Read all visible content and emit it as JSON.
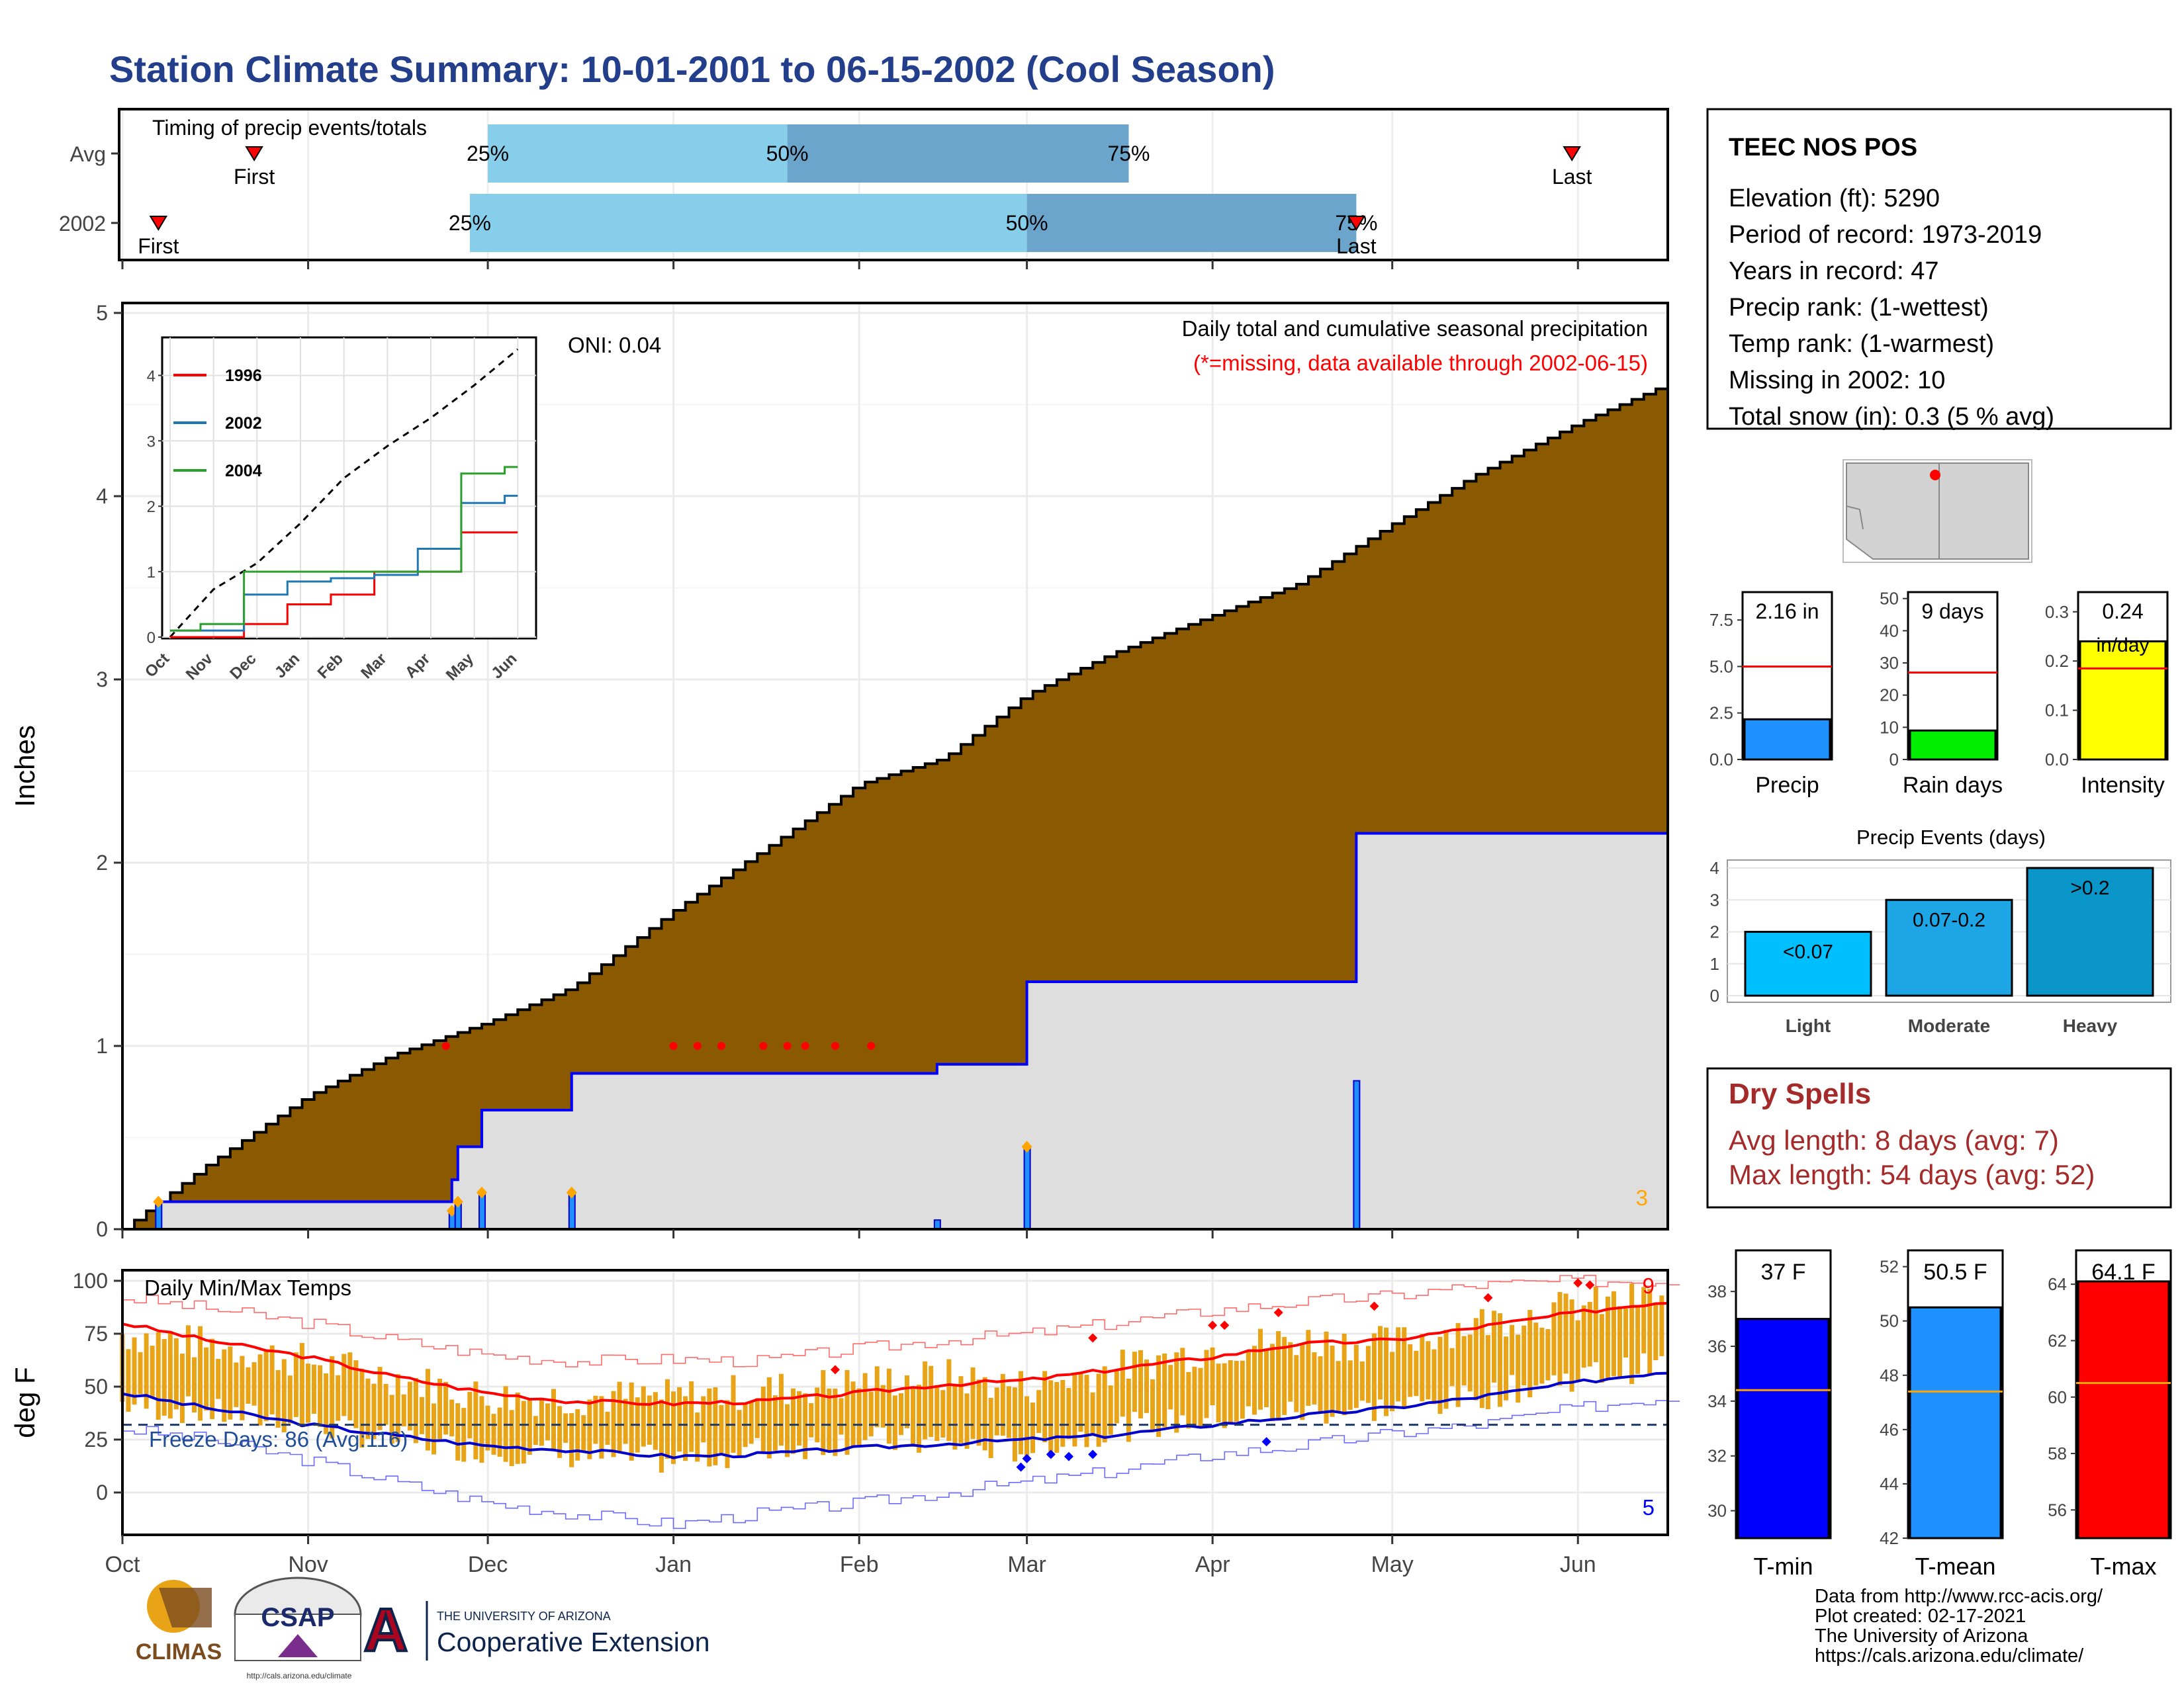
{
  "title": "Station Climate Summary: 10-01-2001 to 06-15-2002 (Cool Season)",
  "colors": {
    "title": "#233f8c",
    "cum_fill": "#8b5a00",
    "avg_fill": "#dedede",
    "bar_light": "#87ceeb",
    "bar_dark": "#6ba5cc",
    "precip_bar": "#1e90ff",
    "raindays_bar": "#00ee00",
    "intensity_bar": "#ffff00",
    "tmin": "#0000ff",
    "tmean": "#1e90ff",
    "tmax": "#ff0000",
    "dry": "#a52a2a",
    "daily_range": "#e8a317"
  },
  "timing": {
    "title": "Timing of precip events/totals",
    "rows": [
      {
        "label": "Avg",
        "first": "Oct 23",
        "p25": "Dec 1",
        "p50": "Jan 20",
        "p75": "Mar 18",
        "last": "May 31",
        "first_label": "First",
        "last_label": "Last",
        "p25_label": "25%",
        "p50_label": "50%",
        "p75_label": "75%"
      },
      {
        "label": "2002",
        "first": "Oct 7",
        "p25": "Nov 28",
        "p50": "Mar 1",
        "p75": "Apr 25",
        "last": "Apr 25",
        "first_label": "First",
        "last_label": "Last",
        "p25_label": "25%",
        "p50_label": "50%",
        "p75_label": "75%"
      }
    ]
  },
  "station": {
    "name": "TEEC NOS POS",
    "lines": [
      "Elevation (ft): 5290",
      "Period of record: 1973-2019",
      "Years in record: 47",
      "Precip rank:  (1-wettest)",
      "Temp rank:  (1-warmest)",
      "Missing in 2002: 10",
      "Total snow (in): 0.3 (5 % avg)"
    ]
  },
  "precip_chart": {
    "ylabel": "Inches",
    "title": "Daily total and cumulative seasonal precipitation",
    "subtitle": "(*=missing, data available through 2002-06-15)",
    "oni": "ONI: 0.04",
    "count_label": "3",
    "months": [
      "Oct",
      "Nov",
      "Dec",
      "Jan",
      "Feb",
      "Mar",
      "Apr",
      "May",
      "Jun"
    ],
    "y_ticks": [
      "0",
      "1",
      "2",
      "3",
      "4",
      "5"
    ]
  },
  "inset": {
    "months": [
      "Oct",
      "Nov",
      "Dec",
      "Jan",
      "Feb",
      "Mar",
      "Apr",
      "May",
      "Jun"
    ],
    "y_ticks": [
      "0",
      "1",
      "2",
      "3",
      "4"
    ],
    "legend": [
      {
        "name": "1996",
        "color": "#ff0000"
      },
      {
        "name": "2002",
        "color": "#1f77b4"
      },
      {
        "name": "2004",
        "color": "#2ca02c"
      }
    ]
  },
  "temp_chart": {
    "ylabel": "deg F",
    "title": "Daily Min/Max Temps",
    "freeze": "Freeze Days: 86 (Avg:116)",
    "count_max": "9",
    "count_min": "5",
    "y_ticks": [
      "0",
      "25",
      "50",
      "75",
      "100"
    ],
    "months": [
      "Oct",
      "Nov",
      "Dec",
      "Jan",
      "Feb",
      "Mar",
      "Apr",
      "May",
      "Jun"
    ]
  },
  "mini_bars": [
    {
      "name": "Precip",
      "value": 2.16,
      "avg": 5.0,
      "label": "2.16 in",
      "label2": "",
      "ticks": [
        "0.0",
        "2.5",
        "5.0",
        "7.5"
      ],
      "ymax": 9.0
    },
    {
      "name": "Rain days",
      "value": 9,
      "avg": 27,
      "label": "9 days",
      "label2": "",
      "ticks": [
        "0",
        "10",
        "20",
        "30",
        "40",
        "50"
      ],
      "ymax": 52
    },
    {
      "name": "Intensity",
      "value": 0.24,
      "avg": 0.185,
      "label": "0.24",
      "label2": "in/day",
      "ticks": [
        "0.0",
        "0.1",
        "0.2",
        "0.3"
      ],
      "ymax": 0.34
    }
  ],
  "events": {
    "title": "Precip Events (days)",
    "ticks": [
      "0",
      "1",
      "2",
      "3",
      "4"
    ],
    "bars": [
      {
        "name": "Light",
        "value": 2,
        "label": "<0.07",
        "color": "#00bfff"
      },
      {
        "name": "Moderate",
        "value": 3,
        "label": "0.07-0.2",
        "color": "#1ea5e6"
      },
      {
        "name": "Heavy",
        "value": 4,
        "label": ">0.2",
        "color": "#0a96c8"
      }
    ]
  },
  "dry_spells": {
    "title": "Dry Spells",
    "avg": "Avg length: 8 days (avg: 7)",
    "max": "Max length: 54 days (avg: 52)"
  },
  "temps_bars": [
    {
      "name": "T-min",
      "value": 37.0,
      "avg": 34.4,
      "label": "37 F",
      "ticks": [
        "30",
        "32",
        "34",
        "36",
        "38"
      ],
      "ymin": 29,
      "ymax": 39.5,
      "color": "#0000ff"
    },
    {
      "name": "T-mean",
      "value": 50.5,
      "avg": 47.4,
      "label": "50.5 F",
      "ticks": [
        "42",
        "44",
        "46",
        "48",
        "50",
        "52"
      ],
      "ymin": 42,
      "ymax": 52.6,
      "color": "#1e90ff"
    },
    {
      "name": "T-max",
      "value": 64.1,
      "avg": 60.5,
      "label": "64.1 F",
      "ticks": [
        "56",
        "58",
        "60",
        "62",
        "64"
      ],
      "ymin": 55,
      "ymax": 65.2,
      "color": "#ff0000"
    }
  ],
  "logos": {
    "climas": "CLIMAS",
    "csap": "CSAP",
    "csap_url": "http://cals.arizona.edu/climate",
    "ua_small": "THE UNIVERSITY OF ARIZONA",
    "ua_big": "Cooperative Extension",
    "ua_letter": "A"
  },
  "footer": [
    "Data from http://www.rcc-acis.org/",
    "Plot created: 02-17-2021",
    "The University of Arizona",
    "https://cals.arizona.edu/climate/"
  ],
  "chart_data": [
    {
      "type": "area",
      "title": "Daily total and cumulative seasonal precipitation",
      "ylabel": "Inches",
      "ylim": [
        0,
        5
      ],
      "x": [
        "Oct 1",
        "Oct 15",
        "Nov 1",
        "Nov 15",
        "Dec 1",
        "Dec 15",
        "Jan 1",
        "Jan 15",
        "Feb 1",
        "Feb 15",
        "Mar 1",
        "Mar 15",
        "Apr 1",
        "Apr 15",
        "May 1",
        "May 15",
        "Jun 1",
        "Jun 15"
      ],
      "series": [
        {
          "name": "cumulative average",
          "values": [
            0.0,
            0.35,
            0.73,
            0.95,
            1.13,
            1.32,
            1.74,
            2.05,
            2.43,
            2.57,
            2.92,
            3.14,
            3.35,
            3.52,
            3.85,
            4.12,
            4.4,
            4.6
          ]
        },
        {
          "name": "2002",
          "values": [
            0.15,
            0.15,
            0.16,
            0.2,
            0.65,
            0.85,
            0.85,
            0.85,
            0.85,
            0.9,
            1.35,
            1.35,
            1.35,
            1.35,
            2.16,
            2.16,
            2.16,
            2.16
          ]
        }
      ],
      "daily_events": [
        {
          "date": "Oct 7",
          "value": 0.15
        },
        {
          "date": "Nov 25",
          "value": 0.1
        },
        {
          "date": "Nov 26",
          "value": 0.15
        },
        {
          "date": "Nov 30",
          "value": 0.2
        },
        {
          "date": "Dec 15",
          "value": 0.2
        },
        {
          "date": "Feb 14",
          "value": 0.05
        },
        {
          "date": "Mar 1",
          "value": 0.45
        },
        {
          "date": "Apr 25",
          "value": 0.81
        }
      ],
      "oni": 0.04
    },
    {
      "type": "line",
      "title": "",
      "ylim": [
        0,
        4.5
      ],
      "x": [
        "Oct",
        "Nov",
        "Dec",
        "Jan",
        "Feb",
        "Mar",
        "Apr",
        "May",
        "Jun"
      ],
      "series": [
        {
          "name": "average",
          "values": [
            0.0,
            0.73,
            1.13,
            1.74,
            2.43,
            2.92,
            3.35,
            3.85,
            4.4
          ]
        },
        {
          "name": "1996",
          "values": [
            0.0,
            0.0,
            0.2,
            0.5,
            0.65,
            1.0,
            1.0,
            1.6,
            1.6
          ]
        },
        {
          "name": "2002",
          "values": [
            0.1,
            0.1,
            0.65,
            0.85,
            0.9,
            0.95,
            1.35,
            2.05,
            2.16
          ]
        },
        {
          "name": "2004",
          "values": [
            0.1,
            0.2,
            1.0,
            1.0,
            1.0,
            1.0,
            1.0,
            2.5,
            2.6
          ]
        }
      ]
    },
    {
      "type": "line",
      "title": "Daily Min/Max Temps",
      "ylabel": "deg F",
      "ylim": [
        -20,
        105
      ],
      "x": [
        "Oct 1",
        "Oct 15",
        "Nov 1",
        "Nov 15",
        "Dec 1",
        "Dec 15",
        "Jan 1",
        "Jan 15",
        "Feb 1",
        "Feb 15",
        "Mar 1",
        "Mar 15",
        "Apr 1",
        "Apr 15",
        "May 1",
        "May 15",
        "Jun 1",
        "Jun 15"
      ],
      "series": [
        {
          "name": "avg max",
          "values": [
            80,
            72,
            64,
            55,
            47,
            43,
            42,
            43,
            47,
            51,
            53,
            58,
            64,
            70,
            72,
            78,
            85,
            90
          ]
        },
        {
          "name": "avg min",
          "values": [
            47,
            40,
            32,
            27,
            22,
            20,
            17,
            18,
            21,
            23,
            25,
            27,
            32,
            36,
            40,
            45,
            52,
            57
          ]
        },
        {
          "name": "record high",
          "values": [
            92,
            87,
            80,
            72,
            65,
            62,
            63,
            62,
            68,
            72,
            75,
            80,
            86,
            90,
            93,
            98,
            100,
            100
          ]
        },
        {
          "name": "record low",
          "values": [
            30,
            25,
            15,
            5,
            -5,
            -10,
            -15,
            -10,
            -5,
            0,
            5,
            10,
            18,
            22,
            28,
            32,
            40,
            45
          ]
        },
        {
          "name": "2002 max",
          "values": [
            75,
            70,
            62,
            55,
            45,
            45,
            45,
            48,
            52,
            55,
            50,
            58,
            68,
            72,
            70,
            80,
            88,
            92
          ]
        },
        {
          "name": "2002 min",
          "values": [
            42,
            38,
            33,
            25,
            20,
            18,
            15,
            20,
            25,
            23,
            20,
            30,
            35,
            38,
            40,
            45,
            55,
            60
          ]
        }
      ],
      "freeze_line": 32
    },
    {
      "type": "bar",
      "categories": [
        "Precip"
      ],
      "values": [
        2.16
      ],
      "average": 5.0,
      "ylim": [
        0,
        9
      ]
    },
    {
      "type": "bar",
      "categories": [
        "Rain days"
      ],
      "values": [
        9
      ],
      "average": 27,
      "ylim": [
        0,
        52
      ]
    },
    {
      "type": "bar",
      "categories": [
        "Intensity"
      ],
      "values": [
        0.24
      ],
      "average": 0.185,
      "ylim": [
        0,
        0.34
      ]
    },
    {
      "type": "bar",
      "title": "Precip Events (days)",
      "categories": [
        "Light",
        "Moderate",
        "Heavy"
      ],
      "values": [
        2,
        3,
        4
      ],
      "ylim": [
        0,
        4.3
      ]
    },
    {
      "type": "bar",
      "categories": [
        "T-min"
      ],
      "values": [
        37.0
      ],
      "average": 34.4,
      "ylim": [
        29,
        39.5
      ]
    },
    {
      "type": "bar",
      "categories": [
        "T-mean"
      ],
      "values": [
        50.5
      ],
      "average": 47.4,
      "ylim": [
        42,
        52.6
      ]
    },
    {
      "type": "bar",
      "categories": [
        "T-max"
      ],
      "values": [
        64.1
      ],
      "average": 60.5,
      "ylim": [
        55,
        65.2
      ]
    }
  ]
}
